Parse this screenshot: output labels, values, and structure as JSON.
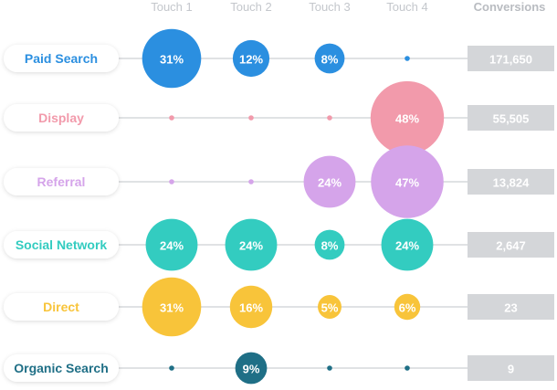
{
  "chart_data": {
    "type": "bubble-matrix",
    "columns": [
      "Touch 1",
      "Touch 2",
      "Touch 3",
      "Touch 4"
    ],
    "conversions_label": "Conversions",
    "rows": [
      {
        "channel": "Paid Search",
        "color": "#2b8fe0",
        "touches": [
          31,
          12,
          8,
          0
        ],
        "labels": [
          "31%",
          "12%",
          "8%",
          ""
        ],
        "conversions": "171,650"
      },
      {
        "channel": "Display",
        "color": "#f29aab",
        "touches": [
          0,
          0,
          0,
          48
        ],
        "labels": [
          "",
          "",
          "",
          "48%"
        ],
        "conversions": "55,505"
      },
      {
        "channel": "Referral",
        "color": "#d5a4ea",
        "touches": [
          0,
          0,
          24,
          47
        ],
        "labels": [
          "",
          "",
          "24%",
          "47%"
        ],
        "conversions": "13,824"
      },
      {
        "channel": "Social Network",
        "color": "#33ccc0",
        "touches": [
          24,
          24,
          8,
          24
        ],
        "labels": [
          "24%",
          "24%",
          "8%",
          "24%"
        ],
        "conversions": "2,647"
      },
      {
        "channel": "Direct",
        "color": "#f8c43a",
        "touches": [
          31,
          16,
          5,
          6
        ],
        "labels": [
          "31%",
          "16%",
          "5%",
          "6%"
        ],
        "conversions": "23"
      },
      {
        "channel": "Organic Search",
        "color": "#1f6f86",
        "touches": [
          0,
          9,
          0,
          0
        ],
        "labels": [
          "",
          "9%",
          "",
          ""
        ],
        "conversions": "9"
      }
    ]
  }
}
